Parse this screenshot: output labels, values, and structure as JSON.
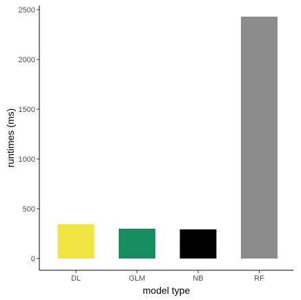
{
  "chart_data": {
    "type": "bar",
    "title": "",
    "xlabel": "model type",
    "ylabel": "runtimes (ms)",
    "categories": [
      "DL",
      "GLM",
      "NB",
      "RF"
    ],
    "values": [
      345,
      300,
      293,
      2430
    ],
    "colors": [
      "#F0E442",
      "#168E61",
      "#000000",
      "#8C8C8C"
    ],
    "ylim": [
      0,
      2530
    ],
    "yticks": [
      0,
      500,
      1000,
      1500,
      2000,
      2500
    ],
    "grid": false,
    "legend": "none"
  }
}
